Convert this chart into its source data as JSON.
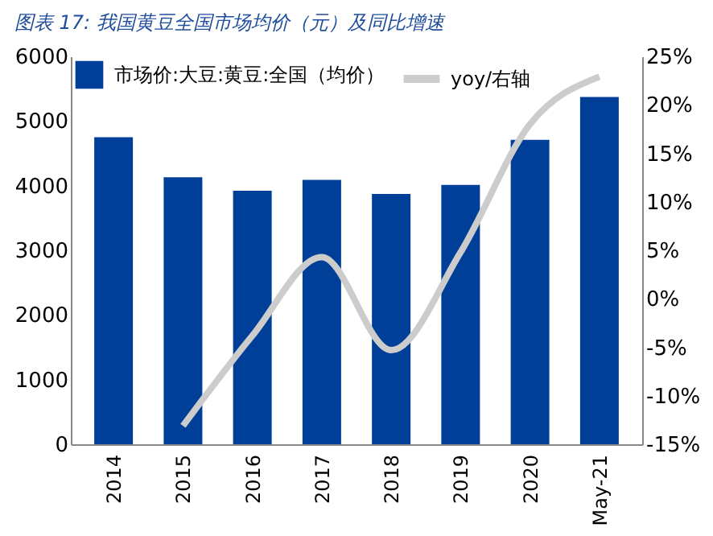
{
  "chart_data": {
    "type": "bar",
    "title": "图表 17: 我国黄豆全国市场均价（元）及同比增速",
    "categories": [
      "2014",
      "2015",
      "2016",
      "2017",
      "2018",
      "2019",
      "2020",
      "May-21"
    ],
    "series": [
      {
        "name": "市场价:大豆:黄豆:全国（均价）",
        "color": "#003f98",
        "values": [
          4750,
          4130,
          3920,
          4090,
          3870,
          4010,
          4710,
          5370
        ]
      },
      {
        "name": "yoy/右轴",
        "type": "line",
        "axis": "y2",
        "color": "#cccccc",
        "values": [
          null,
          -13.1,
          -3.8,
          4.3,
          -5.3,
          4.8,
          18,
          22.9
        ]
      }
    ],
    "ylim": [
      0,
      6000
    ],
    "yticks": [
      0,
      1000,
      2000,
      3000,
      4000,
      5000,
      6000
    ],
    "y2lim": [
      -15,
      25
    ],
    "y2ticks": [
      {
        "value": -15,
        "label": "-15%"
      },
      {
        "value": -10,
        "label": "-10%"
      },
      {
        "value": -5,
        "label": "-5%"
      },
      {
        "value": 0,
        "label": "0%"
      },
      {
        "value": 5,
        "label": "5%"
      },
      {
        "value": 10,
        "label": "10%"
      },
      {
        "value": 15,
        "label": "15%"
      },
      {
        "value": 20,
        "label": "20%"
      },
      {
        "value": 25,
        "label": "25%"
      }
    ],
    "legend": "top left",
    "grid": false,
    "marker": "none"
  }
}
